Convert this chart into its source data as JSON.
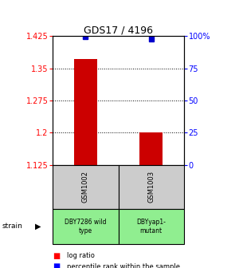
{
  "title": "GDS17 / 4196",
  "ylim_left": [
    1.125,
    1.425
  ],
  "ylim_right": [
    0,
    100
  ],
  "yticks_left": [
    1.125,
    1.2,
    1.275,
    1.35,
    1.425
  ],
  "ytick_labels_left": [
    "1.125",
    "1.2",
    "1.275",
    "1.35",
    "1.425"
  ],
  "yticks_right": [
    0,
    25,
    50,
    75,
    100
  ],
  "ytick_labels_right": [
    "0",
    "25",
    "50",
    "75",
    "100%"
  ],
  "samples": [
    "GSM1002",
    "GSM1003"
  ],
  "bar_values": [
    1.372,
    1.2
  ],
  "bar_baseline": 1.125,
  "bar_color": "#cc0000",
  "blue_square_values": [
    99.5,
    97.5
  ],
  "blue_square_color": "#0000cc",
  "strain_labels": [
    "DBY7286 wild\ntype",
    "DBYyap1-\nmutant"
  ],
  "strain_bg_color": "#90ee90",
  "sample_bg_color": "#cccccc",
  "legend_red_label": "log ratio",
  "legend_blue_label": "percentile rank within the sample",
  "strain_arrow_label": "strain",
  "bar_width": 0.35
}
